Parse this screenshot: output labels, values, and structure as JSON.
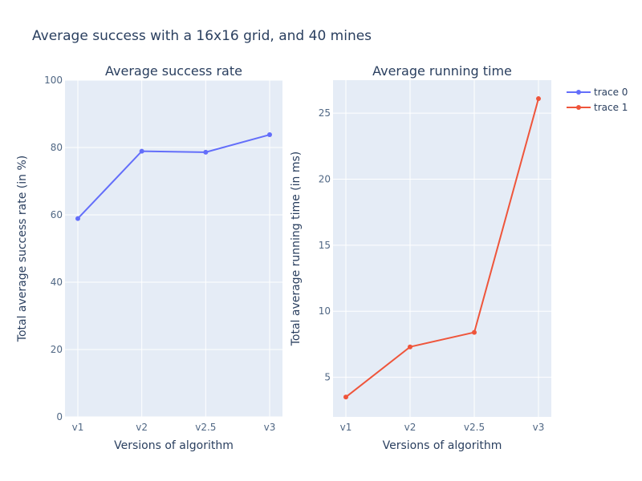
{
  "chart_title": "Average success with a 16x16 grid, and 40 mines",
  "chart_data": [
    {
      "type": "line",
      "title": "Average success rate",
      "categories": [
        "v1",
        "v2",
        "v2.5",
        "v3"
      ],
      "series": [
        {
          "name": "trace 0",
          "values": [
            58.9,
            78.9,
            78.6,
            83.8
          ],
          "color": "#636efa"
        }
      ],
      "xlabel": "Versions of algorithm",
      "ylabel": "Total average success rate (in %)",
      "ylim": [
        0,
        100
      ],
      "yticks": [
        0,
        20,
        40,
        60,
        80,
        100
      ],
      "grid": true
    },
    {
      "type": "line",
      "title": "Average running time",
      "categories": [
        "v1",
        "v2",
        "v2.5",
        "v3"
      ],
      "series": [
        {
          "name": "trace 1",
          "values": [
            3.5,
            7.3,
            8.4,
            26.1
          ],
          "color": "#ef553b"
        }
      ],
      "xlabel": "Versions of algorithm",
      "ylabel": "Total average running time (in ms)",
      "ylim": [
        2.0,
        27.5
      ],
      "yticks": [
        5,
        10,
        15,
        20,
        25
      ],
      "grid": true
    }
  ],
  "legend": {
    "placement": "top-right",
    "items": [
      {
        "name": "trace 0",
        "color": "#636efa"
      },
      {
        "name": "trace 1",
        "color": "#ef553b"
      }
    ]
  }
}
